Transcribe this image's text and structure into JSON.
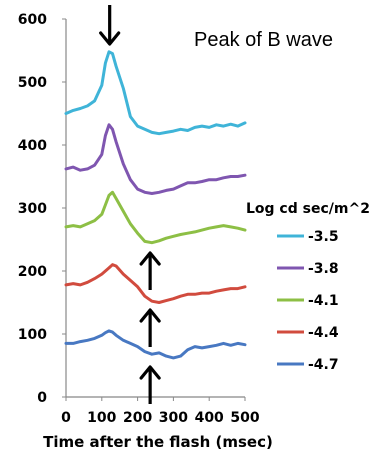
{
  "chart_data": {
    "type": "line",
    "title": "",
    "xlabel": "Time after the flash (msec)",
    "ylabel": "",
    "xlim": [
      0,
      500
    ],
    "ylim": [
      0,
      600
    ],
    "xticks": [
      "0",
      "100",
      "200",
      "300",
      "400",
      "500"
    ],
    "yticks": [
      "0",
      "100",
      "200",
      "300",
      "400",
      "500",
      "600"
    ],
    "grid": false,
    "legend": {
      "title": "Log cd sec/m^2",
      "placement": "right"
    },
    "annotations": {
      "peak_label": "Peak of B wave"
    },
    "x": [
      0,
      20,
      40,
      60,
      80,
      100,
      110,
      120,
      130,
      140,
      160,
      180,
      200,
      220,
      240,
      260,
      280,
      300,
      320,
      340,
      360,
      380,
      400,
      420,
      440,
      460,
      480,
      500
    ],
    "series": [
      {
        "name": "-3.5",
        "color": "#3FB4D8",
        "values": [
          450,
          455,
          458,
          462,
          470,
          495,
          530,
          548,
          545,
          525,
          490,
          445,
          430,
          425,
          420,
          418,
          420,
          422,
          425,
          423,
          428,
          430,
          428,
          432,
          430,
          433,
          430,
          435
        ]
      },
      {
        "name": "-3.8",
        "color": "#7F56B0",
        "values": [
          362,
          365,
          360,
          362,
          368,
          385,
          415,
          432,
          425,
          405,
          370,
          345,
          330,
          325,
          323,
          325,
          328,
          330,
          335,
          340,
          340,
          342,
          345,
          345,
          348,
          350,
          350,
          352
        ]
      },
      {
        "name": "-4.1",
        "color": "#8DBF45",
        "values": [
          270,
          272,
          270,
          275,
          280,
          290,
          305,
          320,
          325,
          315,
          295,
          275,
          260,
          247,
          245,
          248,
          252,
          255,
          258,
          260,
          262,
          265,
          268,
          270,
          272,
          270,
          268,
          265
        ]
      },
      {
        "name": "-4.4",
        "color": "#D14B3E",
        "values": [
          178,
          180,
          178,
          182,
          188,
          195,
          200,
          205,
          210,
          208,
          195,
          185,
          175,
          160,
          152,
          150,
          153,
          156,
          160,
          163,
          163,
          165,
          165,
          168,
          170,
          172,
          172,
          175
        ]
      },
      {
        "name": "-4.7",
        "color": "#4878C2",
        "values": [
          85,
          85,
          88,
          90,
          93,
          98,
          102,
          105,
          103,
          98,
          90,
          85,
          80,
          72,
          68,
          70,
          65,
          62,
          65,
          75,
          80,
          78,
          80,
          82,
          85,
          82,
          85,
          83
        ]
      }
    ],
    "arrows": [
      {
        "kind": "down",
        "x": 122
      },
      {
        "kind": "up",
        "x": 235
      },
      {
        "kind": "up",
        "x": 235
      },
      {
        "kind": "up",
        "x": 235
      }
    ]
  }
}
